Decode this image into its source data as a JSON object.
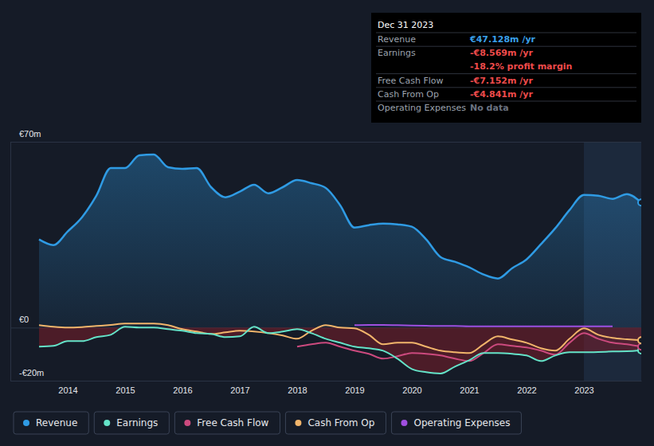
{
  "chart_data": {
    "type": "line",
    "x": [
      2013.5,
      2013.75,
      2014,
      2014.25,
      2014.5,
      2014.75,
      2015,
      2015.25,
      2015.5,
      2015.75,
      2016,
      2016.25,
      2016.5,
      2016.75,
      2017,
      2017.25,
      2017.5,
      2017.75,
      2018,
      2018.25,
      2018.5,
      2018.75,
      2019,
      2019.25,
      2019.5,
      2019.75,
      2020,
      2020.25,
      2020.5,
      2020.75,
      2021,
      2021.25,
      2021.5,
      2021.75,
      2022,
      2022.25,
      2022.5,
      2022.75,
      2023,
      2023.25,
      2023.5,
      2023.75,
      2024
    ],
    "xlim": [
      2013,
      2024
    ],
    "xticks": [
      2014,
      2015,
      2016,
      2017,
      2018,
      2019,
      2020,
      2021,
      2022,
      2023
    ],
    "ylim": [
      -20,
      70
    ],
    "yticks": [
      {
        "value": -20,
        "label": "-€20m"
      },
      {
        "value": 0,
        "label": "€0"
      },
      {
        "value": 70,
        "label": "€70m"
      }
    ],
    "grid": true,
    "legend": "bottom",
    "series": [
      {
        "name": "Revenue",
        "color": "#2f9be4",
        "type": "area",
        "values": [
          33.2,
          31.1,
          36.2,
          41.6,
          49.7,
          60.1,
          60.1,
          64.9,
          65.2,
          60.4,
          59.8,
          60.1,
          52.9,
          49.1,
          51.2,
          53.8,
          50.6,
          52.9,
          55.6,
          54.4,
          52.6,
          46.1,
          37.7,
          38.6,
          39.2,
          38.9,
          38.0,
          33.2,
          26.6,
          24.8,
          22.7,
          20.0,
          18.5,
          22.4,
          25.7,
          31.4,
          37.4,
          44.3,
          50.0,
          49.7,
          48.5,
          50.3,
          47.1
        ]
      },
      {
        "name": "Earnings",
        "color": "#64e3c8",
        "type": "area",
        "values": [
          -7.2,
          -6.9,
          -5.1,
          -5.1,
          -3.6,
          -2.7,
          0.3,
          0,
          0,
          -0.6,
          -1.2,
          -2.1,
          -2.4,
          -3.6,
          -3.3,
          0.3,
          -2.1,
          -1.5,
          -0.6,
          -2.1,
          -4.2,
          -5.7,
          -7.2,
          -7.8,
          -8.7,
          -11.7,
          -15.6,
          -16.8,
          -17.3,
          -14.7,
          -12.3,
          -9.6,
          -9.6,
          -9.9,
          -10.5,
          -12.6,
          -10.5,
          -9.3,
          -9.3,
          -9.2,
          -9.0,
          -8.9,
          -8.6
        ]
      },
      {
        "name": "Free Cash Flow",
        "color": "#cc4a7e",
        "type": "line",
        "values": [
          null,
          null,
          null,
          null,
          null,
          null,
          null,
          null,
          null,
          null,
          null,
          null,
          null,
          null,
          null,
          null,
          null,
          null,
          -7.2,
          -6.3,
          -5.7,
          -7.2,
          -8.7,
          -9.9,
          -11.7,
          -10.8,
          -9.6,
          -9.9,
          -10.5,
          -11.7,
          -12.6,
          -9.6,
          -6.3,
          -6.9,
          -7.5,
          -8.7,
          -10.2,
          -5.7,
          -2.1,
          -4.2,
          -5.7,
          -6.3,
          -7.2
        ]
      },
      {
        "name": "Cash From Op",
        "color": "#f2b56b",
        "type": "line",
        "values": [
          0.9,
          0.3,
          0,
          0.2,
          0.6,
          1.0,
          1.5,
          1.5,
          1.5,
          0.9,
          -0.6,
          -1.5,
          -2.4,
          -1.8,
          -1.2,
          -1.5,
          -2.1,
          -3.0,
          -4.2,
          -1.2,
          0.9,
          0,
          -0.3,
          -2.7,
          -6.3,
          -5.7,
          -5.7,
          -7.2,
          -8.7,
          -9.3,
          -9.6,
          -6.3,
          -3.3,
          -4.5,
          -5.7,
          -7.8,
          -8.7,
          -4.2,
          -0.3,
          -2.7,
          -3.9,
          -4.4,
          -4.8
        ]
      },
      {
        "name": "Operating Expenses",
        "color": "#a04fe0",
        "type": "line",
        "values": [
          null,
          null,
          null,
          null,
          null,
          null,
          null,
          null,
          null,
          null,
          null,
          null,
          null,
          null,
          null,
          null,
          null,
          null,
          null,
          null,
          null,
          null,
          0.9,
          1.0,
          1.0,
          0.9,
          0.8,
          0.7,
          0.6,
          0.6,
          0.5,
          0.5,
          0.5,
          0.5,
          0.5,
          0.5,
          0.5,
          0.5,
          0.5,
          0.5,
          0.5,
          null,
          null
        ]
      }
    ],
    "tooltip": {
      "title": "Dec 31 2023",
      "rows": [
        {
          "label": "Revenue",
          "value": "€47.128m /yr",
          "color": "#3aa0ea"
        },
        {
          "label": "Earnings",
          "value": "-€8.569m /yr",
          "color": "#ef4b4b"
        },
        {
          "value": "-18.2% profit margin",
          "color": "#ef4b4b"
        },
        {
          "label": "Free Cash Flow",
          "value": "-€7.152m /yr",
          "color": "#ef4b4b"
        },
        {
          "label": "Cash From Op",
          "value": "-€4.841m /yr",
          "color": "#ef4b4b"
        },
        {
          "label": "Operating Expenses",
          "value": "No data",
          "color": "#6b7280"
        }
      ]
    }
  }
}
